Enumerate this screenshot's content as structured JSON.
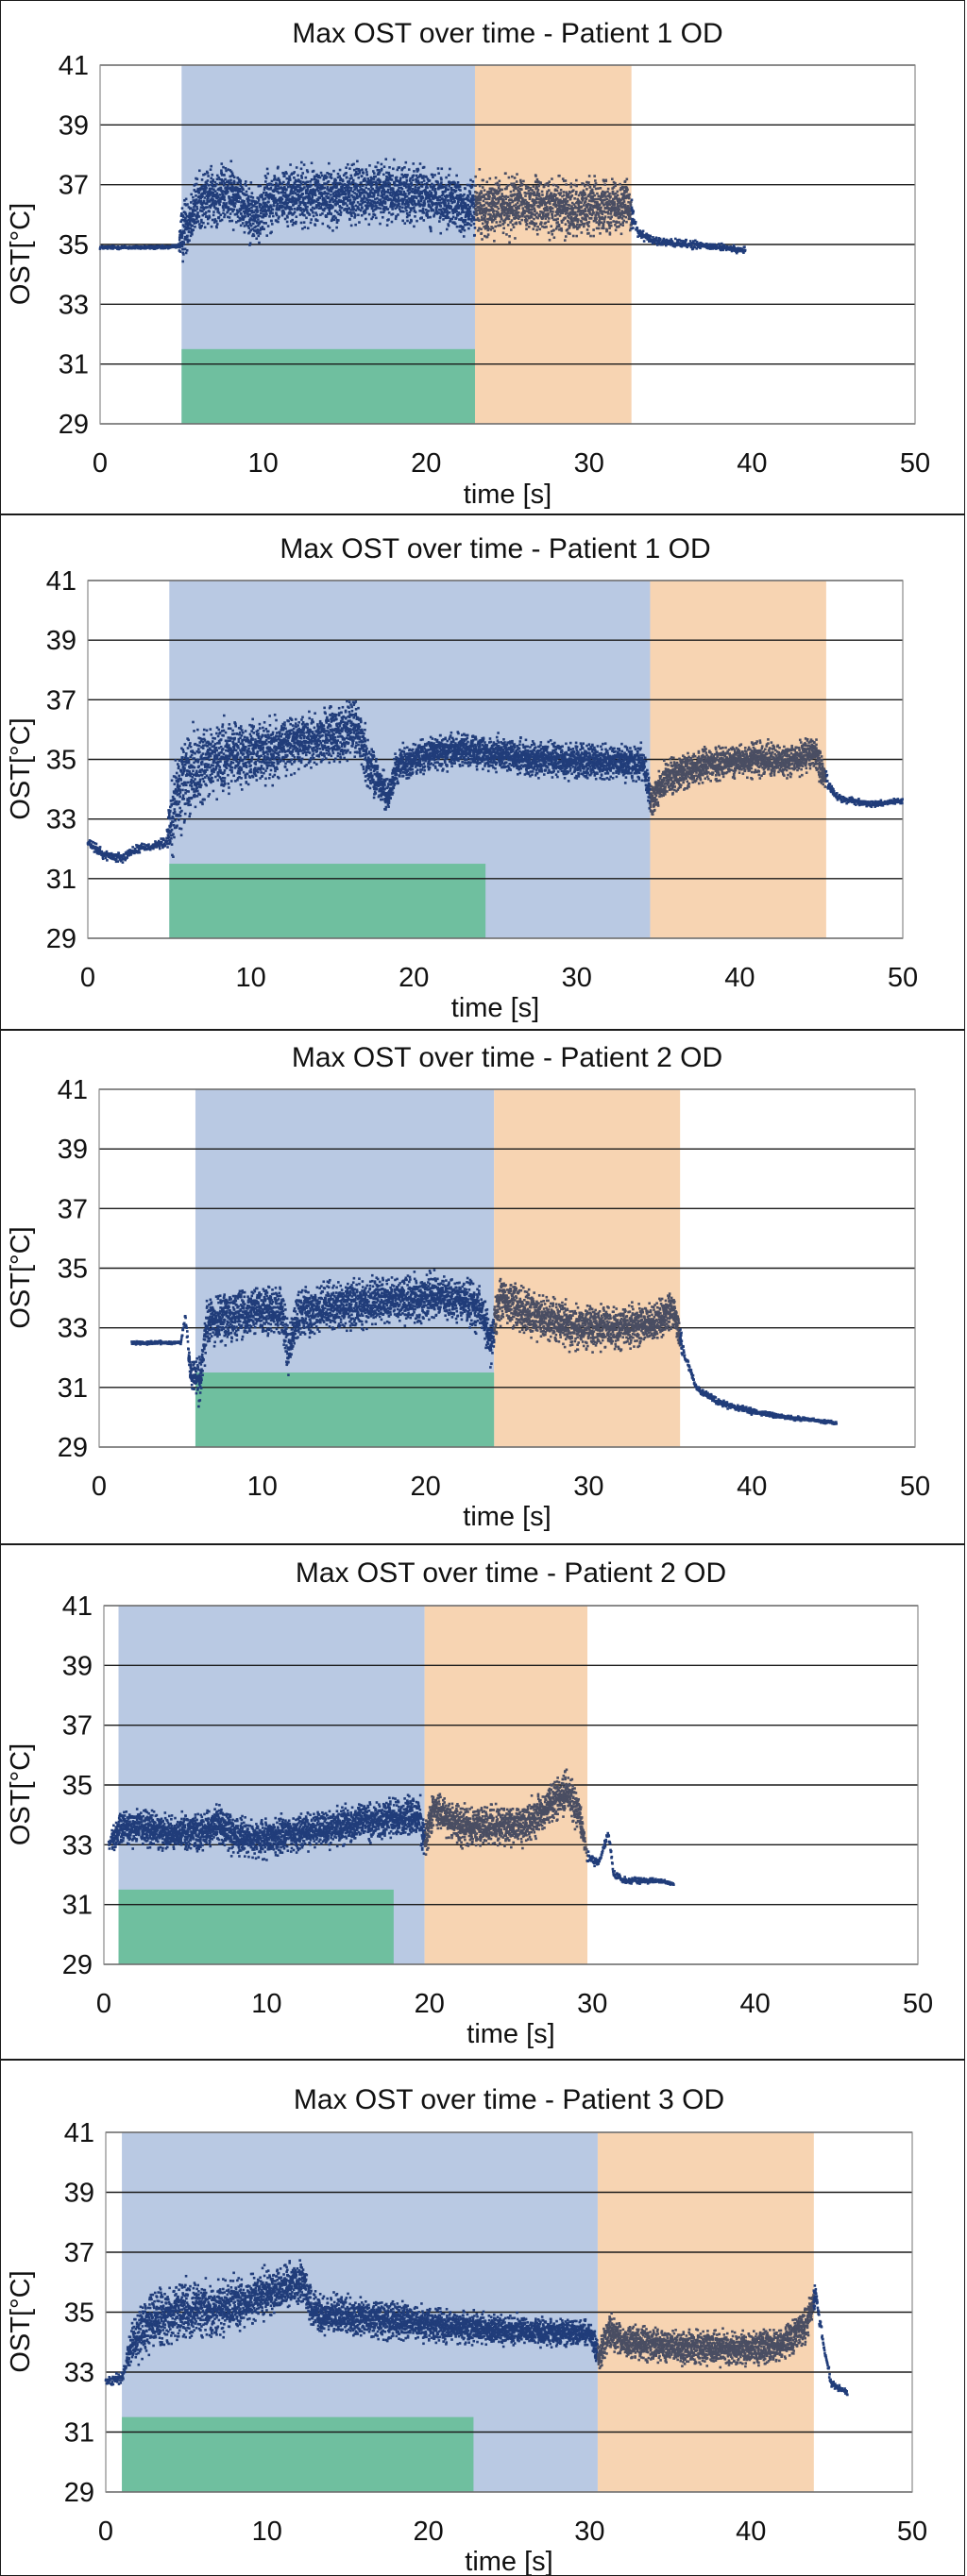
{
  "colors": {
    "treatment_region": "#b9c9e3",
    "post_region": "#f7d4b2",
    "stimulus_bar": "#6fbf9f",
    "series_during": "#213d7a",
    "series_post": "#4a4e63",
    "gridline": "#1a1a1a",
    "plot_border": "#8a8a8a"
  },
  "chart_data": [
    {
      "type": "scatter",
      "title": "Max OST over time - Patient 1 OD",
      "xlabel": "time [s]",
      "ylabel": "OST[°C]",
      "xlim": [
        0,
        50
      ],
      "ylim": [
        29,
        41
      ],
      "x_ticks": [
        "0",
        "10",
        "20",
        "30",
        "40",
        "50"
      ],
      "y_ticks": [
        "41",
        "39",
        "37",
        "35",
        "33",
        "31",
        "29"
      ],
      "grid": "horizontal",
      "shaded_regions": [
        {
          "x_start": 5.0,
          "x_end": 23.0,
          "color": "treatment_region"
        },
        {
          "x_start": 23.0,
          "x_end": 32.6,
          "color": "post_region"
        }
      ],
      "stimulus_bar": {
        "x_start": 5.0,
        "x_end": 23.0,
        "y_top": 31.5
      },
      "series": [
        {
          "points": [
            [
              0,
              34.9
            ],
            [
              2,
              34.9
            ],
            [
              4,
              34.9
            ],
            [
              4.8,
              34.95
            ],
            [
              5.2,
              35.6
            ],
            [
              6,
              36.4
            ],
            [
              7,
              36.6
            ],
            [
              8,
              36.7
            ],
            [
              9,
              36.3
            ],
            [
              9.6,
              35.8
            ],
            [
              10.2,
              36.5
            ],
            [
              12,
              36.6
            ],
            [
              14,
              36.6
            ],
            [
              16,
              36.7
            ],
            [
              18,
              36.8
            ],
            [
              20,
              36.6
            ],
            [
              22,
              36.3
            ],
            [
              23,
              36.2
            ],
            [
              25,
              36.3
            ],
            [
              27,
              36.3
            ],
            [
              29,
              36.2
            ],
            [
              31,
              36.3
            ],
            [
              32.4,
              36.4
            ],
            [
              33,
              35.4
            ],
            [
              34,
              35.1
            ],
            [
              36,
              35.0
            ],
            [
              38,
              34.9
            ],
            [
              39.6,
              34.8
            ]
          ],
          "spread": [
            [
              0,
              0.05
            ],
            [
              4.8,
              0.05
            ],
            [
              5,
              0.9
            ],
            [
              23,
              0.9
            ],
            [
              32.4,
              0.8
            ],
            [
              32.8,
              0.15
            ],
            [
              39.6,
              0.1
            ]
          ]
        }
      ]
    },
    {
      "type": "scatter",
      "title": "Max OST over time - Patient 1 OD",
      "xlabel": "time [s]",
      "ylabel": "OST[°C]",
      "xlim": [
        0,
        50
      ],
      "ylim": [
        29,
        41
      ],
      "x_ticks": [
        "0",
        "10",
        "20",
        "30",
        "40",
        "50"
      ],
      "y_ticks": [
        "41",
        "39",
        "37",
        "35",
        "33",
        "31",
        "29"
      ],
      "grid": "horizontal",
      "shaded_regions": [
        {
          "x_start": 5.0,
          "x_end": 34.5,
          "color": "treatment_region"
        },
        {
          "x_start": 34.5,
          "x_end": 45.3,
          "color": "post_region"
        }
      ],
      "stimulus_bar": {
        "x_start": 5.0,
        "x_end": 24.4,
        "y_top": 31.5
      },
      "series": [
        {
          "points": [
            [
              0,
              32.2
            ],
            [
              1,
              31.8
            ],
            [
              2,
              31.7
            ],
            [
              3,
              32.0
            ],
            [
              4,
              32.1
            ],
            [
              4.8,
              32.2
            ],
            [
              5.4,
              33.6
            ],
            [
              6,
              34.3
            ],
            [
              7,
              34.8
            ],
            [
              9,
              35.1
            ],
            [
              11,
              35.3
            ],
            [
              13,
              35.6
            ],
            [
              15,
              35.8
            ],
            [
              16.6,
              36.0
            ],
            [
              17.2,
              34.8
            ],
            [
              18.4,
              33.8
            ],
            [
              19,
              34.8
            ],
            [
              21,
              35.2
            ],
            [
              23,
              35.3
            ],
            [
              25,
              35.2
            ],
            [
              27,
              35.0
            ],
            [
              29,
              35.0
            ],
            [
              31,
              34.9
            ],
            [
              34,
              34.9
            ],
            [
              34.6,
              33.6
            ],
            [
              35.5,
              34.4
            ],
            [
              37,
              34.7
            ],
            [
              39,
              34.9
            ],
            [
              41,
              35.0
            ],
            [
              43,
              35.0
            ],
            [
              44.6,
              35.2
            ],
            [
              45.4,
              34.2
            ],
            [
              46,
              33.7
            ],
            [
              48,
              33.5
            ],
            [
              50,
              33.6
            ]
          ],
          "spread": [
            [
              0,
              0.15
            ],
            [
              4.8,
              0.15
            ],
            [
              5.2,
              1.4
            ],
            [
              7,
              1.2
            ],
            [
              10,
              0.9
            ],
            [
              17,
              0.9
            ],
            [
              18,
              0.5
            ],
            [
              34.3,
              0.5
            ],
            [
              45,
              0.5
            ],
            [
              45.5,
              0.12
            ],
            [
              50,
              0.08
            ]
          ]
        }
      ]
    },
    {
      "type": "scatter",
      "title": "Max OST over time - Patient 2 OD",
      "xlabel": "time [s]",
      "ylabel": "OST[°C]",
      "xlim": [
        0,
        50
      ],
      "ylim": [
        29,
        41
      ],
      "x_ticks": [
        "0",
        "10",
        "20",
        "30",
        "40",
        "50"
      ],
      "y_ticks": [
        "41",
        "39",
        "37",
        "35",
        "33",
        "31",
        "29"
      ],
      "grid": "horizontal",
      "shaded_regions": [
        {
          "x_start": 5.9,
          "x_end": 24.2,
          "color": "treatment_region"
        },
        {
          "x_start": 24.2,
          "x_end": 35.6,
          "color": "post_region"
        }
      ],
      "stimulus_bar": {
        "x_start": 5.9,
        "x_end": 24.2,
        "y_top": 31.5
      },
      "series": [
        {
          "points": [
            [
              2,
              32.5
            ],
            [
              4,
              32.5
            ],
            [
              5.0,
              32.5
            ],
            [
              5.3,
              33.4
            ],
            [
              5.6,
              31.4
            ],
            [
              6.2,
              31.2
            ],
            [
              6.6,
              33.2
            ],
            [
              8,
              33.4
            ],
            [
              10,
              33.6
            ],
            [
              11.2,
              33.5
            ],
            [
              11.6,
              32.2
            ],
            [
              12.2,
              33.5
            ],
            [
              14,
              33.7
            ],
            [
              16,
              33.8
            ],
            [
              18,
              33.9
            ],
            [
              20,
              34.0
            ],
            [
              22,
              34.0
            ],
            [
              23.4,
              33.6
            ],
            [
              24,
              32.5
            ],
            [
              24.6,
              34.0
            ],
            [
              26,
              33.6
            ],
            [
              28,
              33.2
            ],
            [
              30,
              33.0
            ],
            [
              32,
              33.0
            ],
            [
              34,
              33.2
            ],
            [
              35.2,
              33.6
            ],
            [
              35.8,
              32.2
            ],
            [
              36.6,
              31.0
            ],
            [
              38,
              30.5
            ],
            [
              40,
              30.2
            ],
            [
              42,
              30.0
            ],
            [
              44,
              29.9
            ],
            [
              45.2,
              29.8
            ]
          ],
          "spread": [
            [
              2,
              0.05
            ],
            [
              5.0,
              0.05
            ],
            [
              6.2,
              0.7
            ],
            [
              24,
              0.7
            ],
            [
              35.2,
              0.6
            ],
            [
              36,
              0.12
            ],
            [
              45.2,
              0.05
            ]
          ]
        }
      ]
    },
    {
      "type": "scatter",
      "title": "Max OST over time - Patient 2 OD",
      "xlabel": "time [s]",
      "ylabel": "OST[°C]",
      "xlim": [
        0,
        50
      ],
      "ylim": [
        29,
        41
      ],
      "x_ticks": [
        "0",
        "10",
        "20",
        "30",
        "40",
        "50"
      ],
      "y_ticks": [
        "41",
        "39",
        "37",
        "35",
        "33",
        "31",
        "29"
      ],
      "grid": "horizontal",
      "shaded_regions": [
        {
          "x_start": 0.9,
          "x_end": 19.7,
          "color": "treatment_region"
        },
        {
          "x_start": 19.7,
          "x_end": 29.7,
          "color": "post_region"
        }
      ],
      "stimulus_bar": {
        "x_start": 0.9,
        "x_end": 17.8,
        "y_top": 31.5
      },
      "series": [
        {
          "points": [
            [
              0.3,
              33.0
            ],
            [
              1,
              33.6
            ],
            [
              2,
              33.6
            ],
            [
              4,
              33.4
            ],
            [
              6,
              33.4
            ],
            [
              7,
              33.7
            ],
            [
              8,
              33.3
            ],
            [
              10,
              33.2
            ],
            [
              12,
              33.4
            ],
            [
              14,
              33.6
            ],
            [
              16,
              33.8
            ],
            [
              18,
              33.9
            ],
            [
              19.4,
              34.0
            ],
            [
              19.7,
              33.0
            ],
            [
              20.2,
              34.2
            ],
            [
              22,
              33.6
            ],
            [
              24,
              33.6
            ],
            [
              26,
              33.7
            ],
            [
              27.6,
              34.4
            ],
            [
              28.4,
              34.8
            ],
            [
              29.2,
              34.0
            ],
            [
              29.7,
              32.6
            ],
            [
              30.4,
              32.4
            ],
            [
              31,
              33.4
            ],
            [
              31.3,
              32.0
            ],
            [
              32,
              31.8
            ],
            [
              34,
              31.8
            ],
            [
              35,
              31.7
            ]
          ],
          "spread": [
            [
              0.3,
              0.2
            ],
            [
              1,
              0.55
            ],
            [
              19.5,
              0.55
            ],
            [
              29,
              0.6
            ],
            [
              29.8,
              0.15
            ],
            [
              35,
              0.05
            ]
          ]
        }
      ]
    },
    {
      "type": "scatter",
      "title": "Max OST over time - Patient 3 OD",
      "xlabel": "time [s]",
      "ylabel": "OST[°C]",
      "xlim": [
        0,
        50
      ],
      "ylim": [
        29,
        41
      ],
      "x_ticks": [
        "0",
        "10",
        "20",
        "30",
        "40",
        "50"
      ],
      "y_ticks": [
        "41",
        "39",
        "37",
        "35",
        "33",
        "31",
        "29"
      ],
      "grid": "horizontal",
      "shaded_regions": [
        {
          "x_start": 1.0,
          "x_end": 30.5,
          "color": "treatment_region"
        },
        {
          "x_start": 30.5,
          "x_end": 43.9,
          "color": "post_region"
        }
      ],
      "stimulus_bar": {
        "x_start": 1.0,
        "x_end": 22.8,
        "y_top": 31.5
      },
      "series": [
        {
          "points": [
            [
              0,
              32.7
            ],
            [
              1,
              32.8
            ],
            [
              1.6,
              34.0
            ],
            [
              3,
              34.8
            ],
            [
              5,
              35.0
            ],
            [
              7,
              35.1
            ],
            [
              9,
              35.4
            ],
            [
              11,
              35.8
            ],
            [
              12.2,
              36.1
            ],
            [
              12.8,
              35.0
            ],
            [
              14,
              34.9
            ],
            [
              16,
              34.8
            ],
            [
              18,
              34.7
            ],
            [
              20,
              34.6
            ],
            [
              22,
              34.5
            ],
            [
              24,
              34.4
            ],
            [
              26,
              34.4
            ],
            [
              28,
              34.3
            ],
            [
              30,
              34.3
            ],
            [
              30.6,
              33.5
            ],
            [
              31.2,
              34.4
            ],
            [
              32,
              34.0
            ],
            [
              34,
              33.9
            ],
            [
              36,
              33.8
            ],
            [
              38,
              33.8
            ],
            [
              40,
              33.8
            ],
            [
              42,
              33.9
            ],
            [
              43.4,
              34.6
            ],
            [
              44,
              35.6
            ],
            [
              44.6,
              33.6
            ],
            [
              45,
              32.6
            ],
            [
              46,
              32.3
            ]
          ],
          "spread": [
            [
              0,
              0.1
            ],
            [
              1.2,
              0.2
            ],
            [
              2,
              0.9
            ],
            [
              8,
              0.8
            ],
            [
              12.5,
              0.6
            ],
            [
              30,
              0.35
            ],
            [
              31,
              0.5
            ],
            [
              43.6,
              0.5
            ],
            [
              44.5,
              0.15
            ],
            [
              46,
              0.08
            ]
          ]
        }
      ]
    }
  ]
}
